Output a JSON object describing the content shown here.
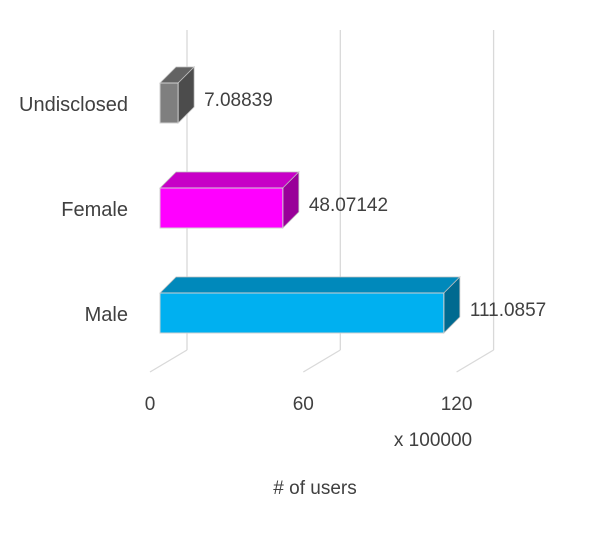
{
  "chart_data": {
    "type": "bar",
    "orientation": "horizontal",
    "style": "3d",
    "categories": [
      "Undisclosed",
      "Female",
      "Male"
    ],
    "values": [
      7.08839,
      48.07142,
      111.0857
    ],
    "value_labels": [
      "7.08839",
      "48.07142",
      "111.0857"
    ],
    "colors": [
      "#7f7f7f",
      "#ff00ff",
      "#00b0f0"
    ],
    "xlim": [
      0,
      120
    ],
    "xticks": [
      "0",
      "60",
      "120"
    ],
    "multiplier_label": "x 100000",
    "xlabel": "# of users",
    "grid": true
  }
}
